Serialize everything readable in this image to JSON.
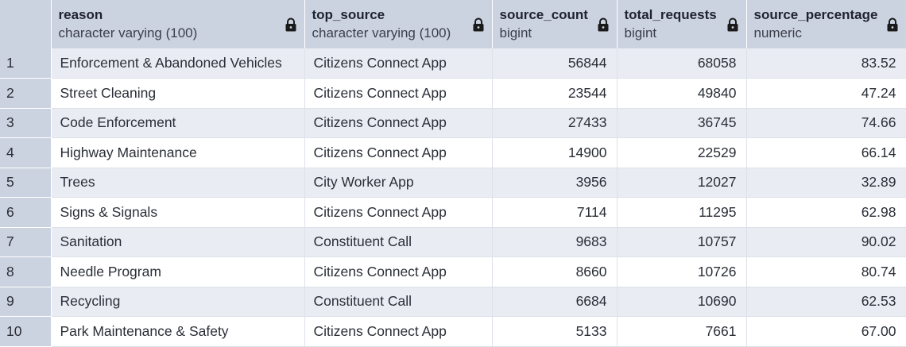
{
  "columns": [
    {
      "name": "reason",
      "type": "character varying (100)",
      "icon": "lock-icon"
    },
    {
      "name": "top_source",
      "type": "character varying (100)",
      "icon": "lock-icon"
    },
    {
      "name": "source_count",
      "type": "bigint",
      "icon": "lock-icon"
    },
    {
      "name": "total_requests",
      "type": "bigint",
      "icon": "lock-icon"
    },
    {
      "name": "source_percentage",
      "type": "numeric",
      "icon": "lock-icon"
    }
  ],
  "rows": [
    {
      "idx": "1",
      "reason": "Enforcement & Abandoned Vehicles",
      "top_source": "Citizens Connect App",
      "source_count": "56844",
      "total_requests": "68058",
      "source_percentage": "83.52"
    },
    {
      "idx": "2",
      "reason": "Street Cleaning",
      "top_source": "Citizens Connect App",
      "source_count": "23544",
      "total_requests": "49840",
      "source_percentage": "47.24"
    },
    {
      "idx": "3",
      "reason": "Code Enforcement",
      "top_source": "Citizens Connect App",
      "source_count": "27433",
      "total_requests": "36745",
      "source_percentage": "74.66"
    },
    {
      "idx": "4",
      "reason": "Highway Maintenance",
      "top_source": "Citizens Connect App",
      "source_count": "14900",
      "total_requests": "22529",
      "source_percentage": "66.14"
    },
    {
      "idx": "5",
      "reason": "Trees",
      "top_source": "City Worker App",
      "source_count": "3956",
      "total_requests": "12027",
      "source_percentage": "32.89"
    },
    {
      "idx": "6",
      "reason": "Signs & Signals",
      "top_source": "Citizens Connect App",
      "source_count": "7114",
      "total_requests": "11295",
      "source_percentage": "62.98"
    },
    {
      "idx": "7",
      "reason": "Sanitation",
      "top_source": "Constituent Call",
      "source_count": "9683",
      "total_requests": "10757",
      "source_percentage": "90.02"
    },
    {
      "idx": "8",
      "reason": "Needle Program",
      "top_source": "Citizens Connect App",
      "source_count": "8660",
      "total_requests": "10726",
      "source_percentage": "80.74"
    },
    {
      "idx": "9",
      "reason": "Recycling",
      "top_source": "Constituent Call",
      "source_count": "6684",
      "total_requests": "10690",
      "source_percentage": "62.53"
    },
    {
      "idx": "10",
      "reason": "Park Maintenance & Safety",
      "top_source": "Citizens Connect App",
      "source_count": "5133",
      "total_requests": "7661",
      "source_percentage": "67.00"
    }
  ]
}
